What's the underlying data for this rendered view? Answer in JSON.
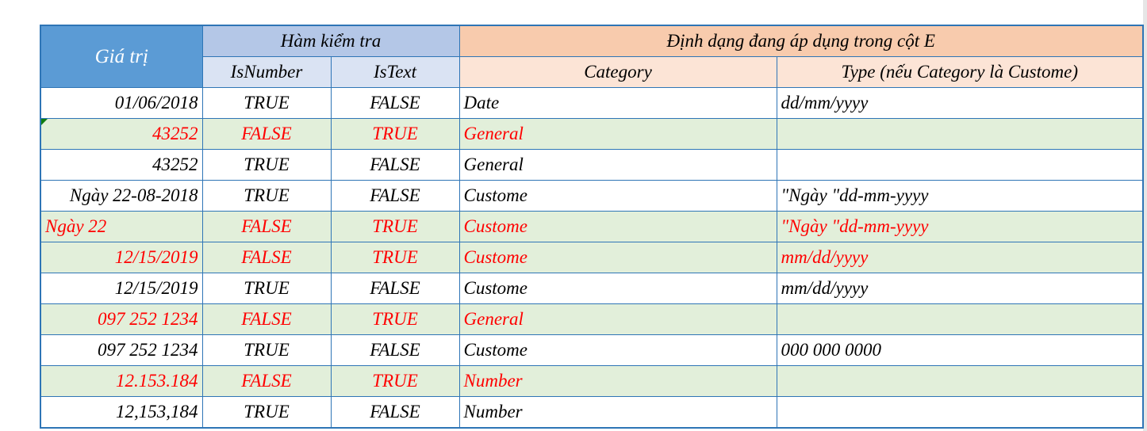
{
  "header": {
    "value_col": "Giá trị",
    "check_group": "Hàm kiểm tra",
    "isnumber": "IsNumber",
    "istext": "IsText",
    "format_group": "Định dạng đang áp dụng trong cột E",
    "category": "Category",
    "type": "Type (nếu Category là Custome)"
  },
  "colors": {
    "header_blue": "#5b9bd5",
    "group_blue": "#b4c7e7",
    "sub_blue": "#dae3f3",
    "group_orange": "#f8cbad",
    "sub_orange": "#fce4d6",
    "row_green": "#e2efda",
    "text_red": "#ff0000",
    "border": "#2e75b6"
  },
  "rows": [
    {
      "value": "01/06/2018",
      "align": "r",
      "isnumber": "TRUE",
      "istext": "FALSE",
      "category": "Date",
      "type": "dd/mm/yyyy",
      "highlight": false
    },
    {
      "value": "43252",
      "align": "r",
      "isnumber": "FALSE",
      "istext": "TRUE",
      "category": "General",
      "type": "",
      "highlight": true,
      "error_indicator": true
    },
    {
      "value": "43252",
      "align": "r",
      "isnumber": "TRUE",
      "istext": "FALSE",
      "category": "General",
      "type": "",
      "highlight": false
    },
    {
      "value": "Ngày 22-08-2018",
      "align": "r",
      "isnumber": "TRUE",
      "istext": "FALSE",
      "category": "Custome",
      "type": "\"Ngày \"dd-mm-yyyy",
      "highlight": false
    },
    {
      "value": "Ngày 22",
      "align": "l",
      "isnumber": "FALSE",
      "istext": "TRUE",
      "category": "Custome",
      "type": "\"Ngày \"dd-mm-yyyy",
      "highlight": true
    },
    {
      "value": "12/15/2019",
      "align": "r",
      "isnumber": "FALSE",
      "istext": "TRUE",
      "category": "Custome",
      "type": "mm/dd/yyyy",
      "highlight": true
    },
    {
      "value": "12/15/2019",
      "align": "r",
      "isnumber": "TRUE",
      "istext": "FALSE",
      "category": "Custome",
      "type": "mm/dd/yyyy",
      "highlight": false
    },
    {
      "value": "097 252 1234",
      "align": "r",
      "isnumber": "FALSE",
      "istext": "TRUE",
      "category": "General",
      "type": "",
      "highlight": true
    },
    {
      "value": "097 252 1234",
      "align": "r",
      "isnumber": "TRUE",
      "istext": "FALSE",
      "category": "Custome",
      "type": "000 000 0000",
      "highlight": false
    },
    {
      "value": "12.153.184",
      "align": "r",
      "isnumber": "FALSE",
      "istext": "TRUE",
      "category": "Number",
      "type": "",
      "highlight": true
    },
    {
      "value": "12,153,184",
      "align": "r",
      "isnumber": "TRUE",
      "istext": "FALSE",
      "category": "Number",
      "type": "",
      "highlight": false
    }
  ]
}
